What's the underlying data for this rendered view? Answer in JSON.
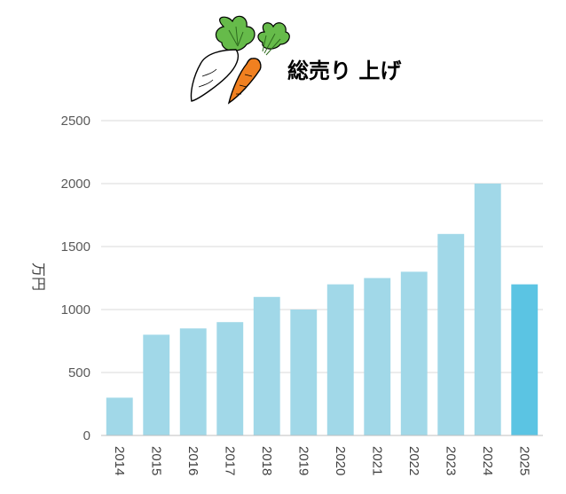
{
  "chart_data": {
    "type": "bar",
    "title": "総売り 上げ",
    "ylabel": "万円",
    "xlabel": "",
    "categories": [
      "2014",
      "2015",
      "2016",
      "2017",
      "2018",
      "2019",
      "2020",
      "2021",
      "2022",
      "2023",
      "2024",
      "2025"
    ],
    "values": [
      300,
      800,
      850,
      900,
      1100,
      1000,
      1200,
      1250,
      1300,
      1600,
      2000,
      1200
    ],
    "ylim": [
      0,
      2500
    ],
    "yticks": [
      0,
      500,
      1000,
      1500,
      2000,
      2500
    ],
    "grid": true,
    "legend": "none",
    "colors": {
      "bar": "#a1d8e8",
      "highlight_bar": "#5bc4e3",
      "highlight_index": 11,
      "grid": "#d9d9d9",
      "axis": "#bfbfbf"
    },
    "title_icon": "daikon-carrot-vegetables-icon"
  }
}
